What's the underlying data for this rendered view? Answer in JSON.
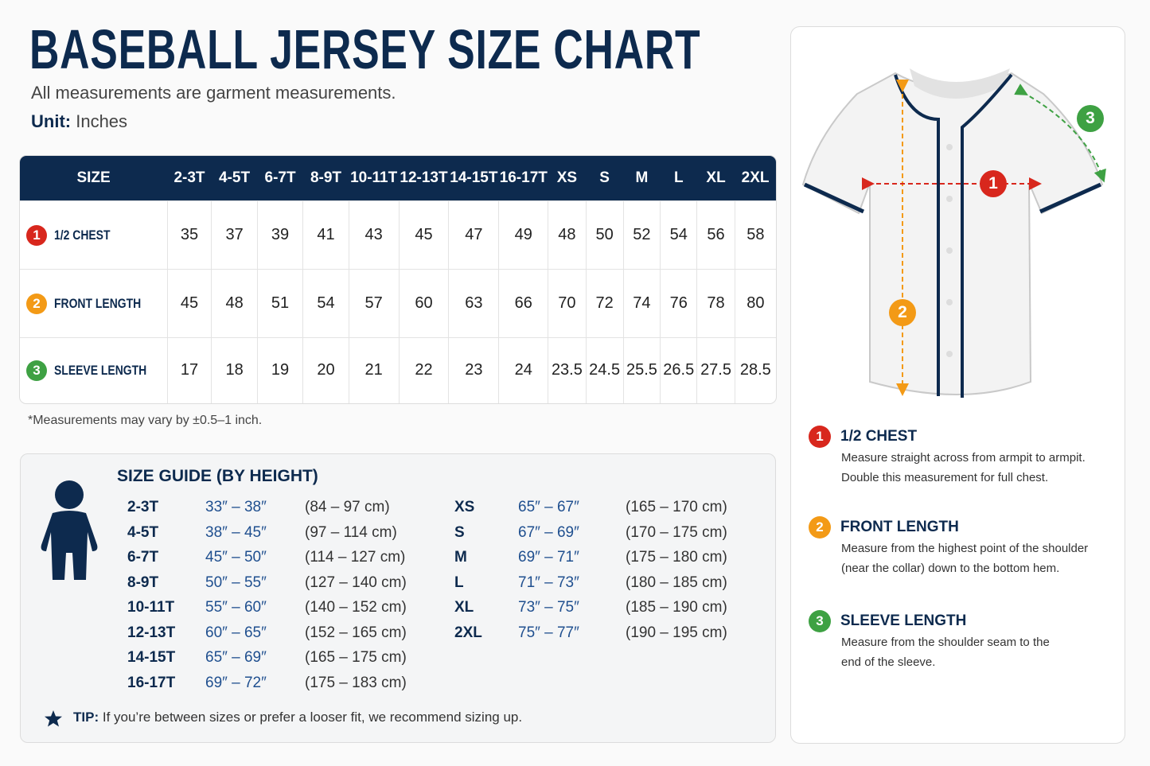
{
  "header": {
    "title": "BASEBALL JERSEY SIZE CHART",
    "subtitle": "All measurements are garment measurements.",
    "unit_label": "Unit:",
    "unit_value": "Inches"
  },
  "measurements": [
    {
      "number": "1",
      "name": "1/2 CHEST",
      "lines": [
        "Measure straight across from armpit to armpit.",
        "Double this measurement for full chest."
      ]
    },
    {
      "number": "2",
      "name": "FRONT LENGTH",
      "lines": [
        "Measure from the highest point of the shoulder",
        "(near the collar) down to the bottom hem."
      ]
    },
    {
      "number": "3",
      "name": "SLEEVE LENGTH",
      "lines": [
        "Measure from the shoulder seam to the",
        "end of the sleeve."
      ]
    }
  ],
  "table": {
    "header": [
      "SIZE",
      "2-3T",
      "4-5T",
      "6-7T",
      "8-9T",
      "10-11T",
      "12-13T",
      "14-15T",
      "16-17T",
      "XS",
      "S",
      "M",
      "L",
      "XL",
      "2XL"
    ],
    "rows": [
      [
        35,
        37,
        39,
        41,
        43,
        45,
        47,
        49,
        48,
        50,
        52,
        54,
        56,
        58
      ],
      [
        45,
        48,
        51,
        54,
        57,
        60,
        63,
        66,
        70,
        72,
        74,
        76,
        78,
        80
      ],
      [
        17,
        18,
        19,
        20,
        21,
        22,
        23,
        24,
        23.5,
        24.5,
        25.5,
        26.5,
        27.5,
        28.5
      ]
    ],
    "note": "*Measurements may vary by ±0.5–1 inch."
  },
  "guide": {
    "title": "SIZE GUIDE (BY HEIGHT)",
    "youth": [
      [
        "2-3T",
        "33″ – 38″",
        "(84 – 97 cm)"
      ],
      [
        "4-5T",
        "38″ – 45″",
        "(97 – 114 cm)"
      ],
      [
        "6-7T",
        "45″ – 50″",
        "(114 – 127 cm)"
      ],
      [
        "8-9T",
        "50″ – 55″",
        "(127 – 140 cm)"
      ],
      [
        "10-11T",
        "55″ – 60″",
        "(140 – 152 cm)"
      ],
      [
        "12-13T",
        "60″ – 65″",
        "(152 – 165 cm)"
      ],
      [
        "14-15T",
        "65″ – 69″",
        "(165 – 175 cm)"
      ],
      [
        "16-17T",
        "69″ – 72″",
        "(175 – 183 cm)"
      ]
    ],
    "adult": [
      [
        "XS",
        "65″ – 67″",
        "(165 – 170 cm)"
      ],
      [
        "S",
        "67″ – 69″",
        "(170 – 175 cm)"
      ],
      [
        "M",
        "69″ – 71″",
        "(175 – 180 cm)"
      ],
      [
        "L",
        "71″ – 73″",
        "(180 – 185 cm)"
      ],
      [
        "XL",
        "73″ – 75″",
        "(185 – 190 cm)"
      ],
      [
        "2XL",
        "75″ – 77″",
        "(190 – 195 cm)"
      ]
    ],
    "tip_label": "TIP:",
    "tip_text": "If you’re between sizes or prefer a looser fit, we recommend sizing up."
  }
}
